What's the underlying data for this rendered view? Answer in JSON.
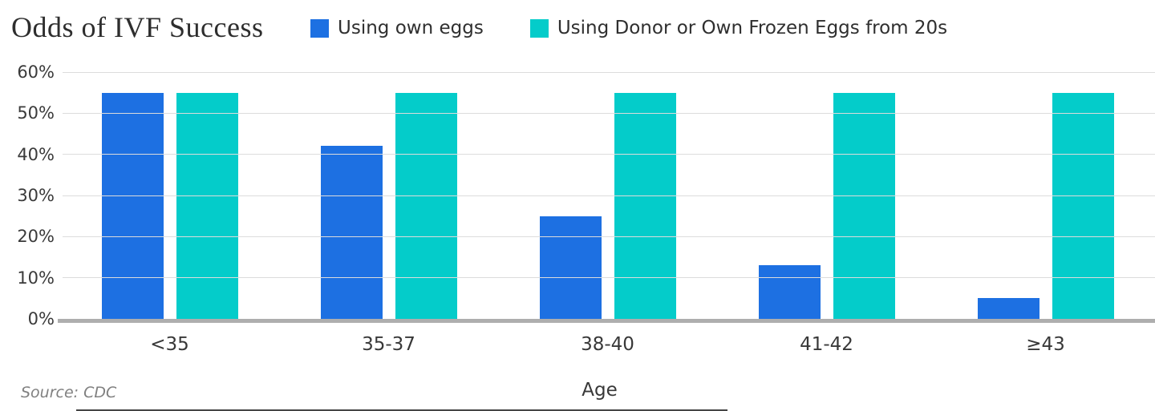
{
  "title": "Odds of IVF Success",
  "source": "Source: CDC",
  "colors": {
    "own_eggs": "#1D70E2",
    "donor_eggs": "#04CCCA",
    "gridline": "#DCDCDC",
    "baseline": "#AEAEAE",
    "title_text": "#2E2E2E",
    "axis_text": "#3A3A3A"
  },
  "legend": [
    {
      "label": "Using own eggs",
      "color": "#1D70E2"
    },
    {
      "label": "Using Donor or Own Frozen Eggs from 20s",
      "color": "#04CCCA"
    }
  ],
  "chart_data": {
    "type": "bar",
    "title": "Odds of IVF Success",
    "categories": [
      "<35",
      "35-37",
      "38-40",
      "41-42",
      "≥43"
    ],
    "series": [
      {
        "name": "Using own eggs",
        "color": "#1D70E2",
        "values": [
          55,
          42,
          25,
          13,
          5
        ]
      },
      {
        "name": "Using Donor or Own Frozen Eggs from 20s",
        "color": "#04CCCA",
        "values": [
          55,
          55,
          55,
          55,
          55
        ]
      }
    ],
    "xlabel": "Age",
    "ylabel": "",
    "ylim": [
      0,
      60
    ],
    "yticks": [
      "60%",
      "50%",
      "40%",
      "30%",
      "20%",
      "10%",
      "0%"
    ],
    "grid": true,
    "legend_position": "top"
  }
}
